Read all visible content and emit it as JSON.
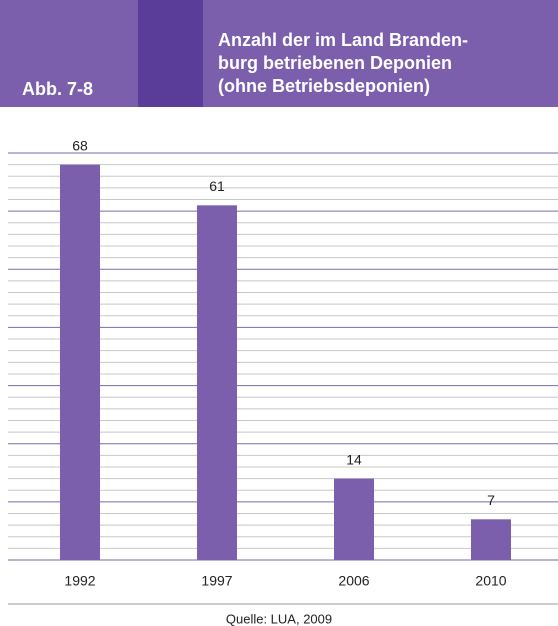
{
  "chart_data": {
    "type": "bar",
    "figure_label": "Abb. 7-8",
    "title": [
      "Anzahl der im Land Branden-",
      "burg betriebenen Deponien",
      "(ohne Betriebsdeponien)"
    ],
    "categories": [
      "1992",
      "1997",
      "2006",
      "2010"
    ],
    "values": [
      68,
      61,
      14,
      7
    ],
    "color": "#7b5fad",
    "ylim": [
      0,
      70
    ],
    "yticks": [
      0,
      10,
      20,
      30,
      40,
      50,
      60,
      70
    ],
    "yticks_minor": [
      2,
      4,
      6,
      8,
      12,
      14,
      16,
      18,
      22,
      24,
      26,
      28,
      32,
      34,
      36,
      38,
      42,
      44,
      46,
      48,
      52,
      54,
      56,
      58,
      62,
      64,
      66,
      68
    ],
    "grid": true,
    "source": "Quelle: LUA, 2009"
  }
}
